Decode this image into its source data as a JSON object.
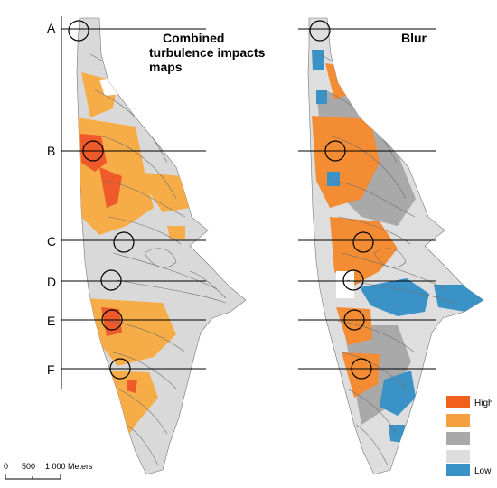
{
  "maps": {
    "left_title_lines": [
      "Combined",
      "turbulence impacts",
      "maps"
    ],
    "right_title": "Blur"
  },
  "rows": [
    "A",
    "B",
    "C",
    "D",
    "E",
    "F"
  ],
  "legend": {
    "items": [
      {
        "label": "High",
        "color": "#f0601c"
      },
      {
        "label": "",
        "color": "#f5a040"
      },
      {
        "label": "",
        "color": "#a9a9a9"
      },
      {
        "label": "",
        "color": "#dedede"
      },
      {
        "label": "Low",
        "color": "#3b92c6"
      }
    ]
  },
  "scale_bar": {
    "ticks": [
      "0",
      "500",
      "1 000 Meters"
    ]
  },
  "colors": {
    "land": "#d9d9d9",
    "contour": "#6f6f6f",
    "orange": "#f6ad48",
    "red_orange": "#ef5a2a",
    "blur_orange": "#f48c34",
    "blue": "#3b92c6"
  }
}
